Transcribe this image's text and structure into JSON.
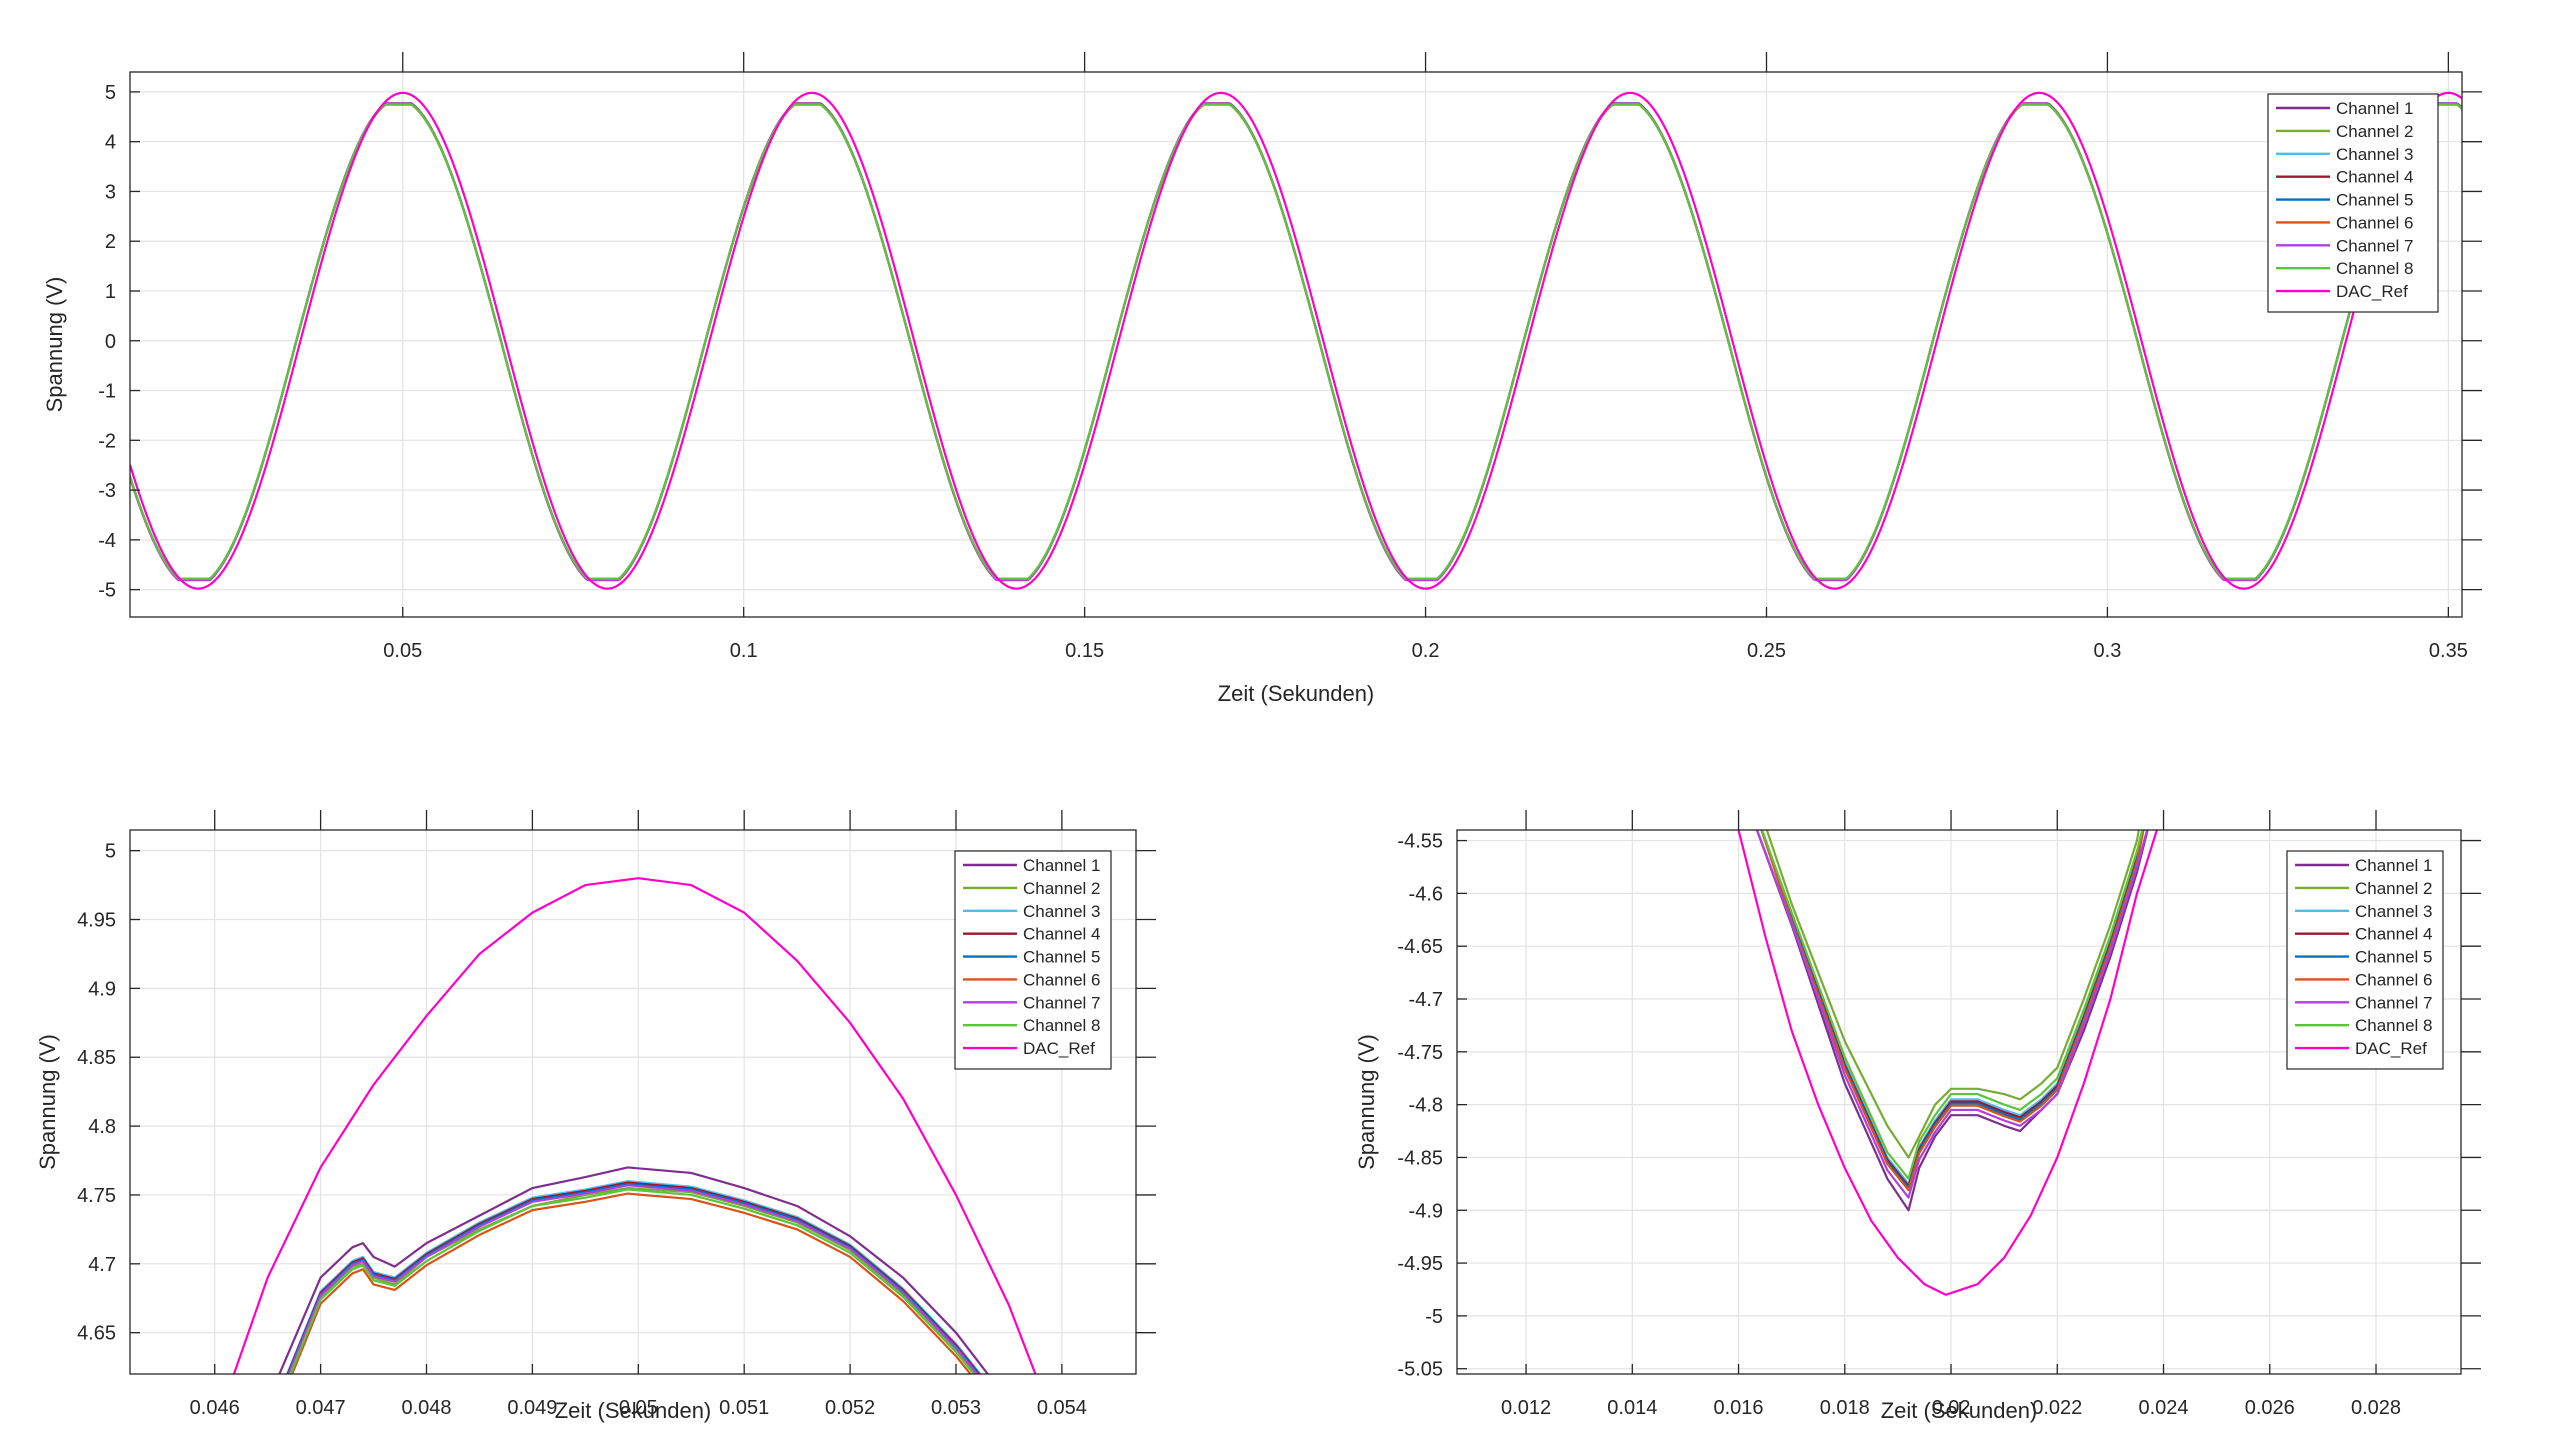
{
  "figure": {
    "background": "#ffffff",
    "axis_color": "#262626",
    "grid_color": "#e3e3e3"
  },
  "series_styles": [
    {
      "name": "Channel 1",
      "color": "#7E2F8E"
    },
    {
      "name": "Channel 2",
      "color": "#77AC30"
    },
    {
      "name": "Channel 3",
      "color": "#4DBEEE"
    },
    {
      "name": "Channel 4",
      "color": "#A2142F"
    },
    {
      "name": "Channel 5",
      "color": "#0072BD"
    },
    {
      "name": "Channel 6",
      "color": "#D95319"
    },
    {
      "name": "Channel 7",
      "color": "#B041E0"
    },
    {
      "name": "Channel 8",
      "color": "#5CC43A"
    },
    {
      "name": "DAC_Ref",
      "color": "#FF00CC"
    }
  ],
  "chart_data": [
    {
      "id": "overview",
      "type": "line",
      "xlabel": "Zeit (Sekunden)",
      "ylabel": "Spannung (V)",
      "xlim": [
        0.01,
        0.352
      ],
      "ylim": [
        -5.55,
        5.4
      ],
      "xticks": [
        0.05,
        0.1,
        0.15,
        0.2,
        0.25,
        0.3,
        0.35
      ],
      "xtick_labels": [
        "0.05",
        "0.1",
        "0.15",
        "0.2",
        "0.25",
        "0.3",
        "0.35"
      ],
      "yticks": [
        5,
        4,
        3,
        2,
        1,
        0,
        -1,
        -2,
        -3,
        -4,
        -5
      ],
      "ytick_labels": [
        "5",
        "4",
        "3",
        "2",
        "1",
        "0",
        "-1",
        "-2",
        "-3",
        "-4",
        "-5"
      ],
      "grid": true,
      "legend_position": "top-right",
      "signal": {
        "frequency_hz": 16.667,
        "reference_amplitude": 4.98,
        "channel_peak": 4.75,
        "channel_trough": -4.8,
        "peak_time_s": 0.05
      },
      "series": [
        {
          "name": "Channel 1",
          "peak_value": 4.77,
          "trough_value": -4.8
        },
        {
          "name": "Channel 2",
          "peak_value": 4.75,
          "trough_value": -4.78
        },
        {
          "name": "Channel 3",
          "peak_value": 4.755,
          "trough_value": -4.795
        },
        {
          "name": "Channel 4",
          "peak_value": 4.755,
          "trough_value": -4.8
        },
        {
          "name": "Channel 5",
          "peak_value": 4.755,
          "trough_value": -4.8
        },
        {
          "name": "Channel 6",
          "peak_value": 4.745,
          "trough_value": -4.805
        },
        {
          "name": "Channel 7",
          "peak_value": 4.755,
          "trough_value": -4.81
        },
        {
          "name": "Channel 8",
          "peak_value": 4.75,
          "trough_value": -4.78
        },
        {
          "name": "DAC_Ref",
          "peak_value": 4.98,
          "trough_value": -4.98
        }
      ]
    },
    {
      "id": "zoom-peak",
      "type": "line",
      "xlabel": "Zeit (Sekunden)",
      "ylabel": "Spannung (V)",
      "xlim": [
        0.0452,
        0.0547
      ],
      "ylim": [
        4.62,
        5.015
      ],
      "xticks": [
        0.046,
        0.047,
        0.048,
        0.049,
        0.05,
        0.051,
        0.052,
        0.053,
        0.054
      ],
      "xtick_labels": [
        "0.046",
        "0.047",
        "0.048",
        "0.049",
        "0.05",
        "0.051",
        "0.052",
        "0.053",
        "0.054"
      ],
      "yticks": [
        5,
        4.95,
        4.9,
        4.85,
        4.8,
        4.75,
        4.7,
        4.65
      ],
      "ytick_labels": [
        "5",
        "4.95",
        "4.9",
        "4.85",
        "4.8",
        "4.75",
        "4.7",
        "4.65"
      ],
      "grid": true,
      "legend_position": "top-right",
      "series": [
        {
          "name": "Channel 1",
          "x": [
            0.0465,
            0.047,
            0.0473,
            0.0474,
            0.0475,
            0.0477,
            0.048,
            0.0485,
            0.049,
            0.0495,
            0.0499,
            0.0505,
            0.051,
            0.0515,
            0.052,
            0.0525,
            0.053,
            0.0535
          ],
          "y": [
            4.6,
            4.69,
            4.712,
            4.715,
            4.705,
            4.698,
            4.715,
            4.735,
            4.755,
            4.763,
            4.77,
            4.766,
            4.755,
            4.742,
            4.72,
            4.69,
            4.65,
            4.6
          ]
        },
        {
          "name": "Channel 2",
          "x": [
            0.0465,
            0.047,
            0.0473,
            0.0474,
            0.0475,
            0.0477,
            0.048,
            0.0485,
            0.049,
            0.0495,
            0.0499,
            0.0505,
            0.051,
            0.0515,
            0.052,
            0.0525,
            0.053,
            0.0535
          ],
          "y": [
            4.58,
            4.675,
            4.698,
            4.7,
            4.69,
            4.685,
            4.705,
            4.725,
            4.742,
            4.75,
            4.755,
            4.752,
            4.742,
            4.73,
            4.71,
            4.678,
            4.638,
            4.59
          ]
        },
        {
          "name": "Channel 3",
          "x": [
            0.0465,
            0.047,
            0.0473,
            0.0474,
            0.0475,
            0.0477,
            0.048,
            0.0485,
            0.049,
            0.0495,
            0.0499,
            0.0505,
            0.051,
            0.0515,
            0.052,
            0.0525,
            0.053,
            0.0535
          ],
          "y": [
            4.585,
            4.68,
            4.702,
            4.705,
            4.694,
            4.69,
            4.708,
            4.73,
            4.748,
            4.754,
            4.76,
            4.756,
            4.746,
            4.734,
            4.714,
            4.682,
            4.642,
            4.594
          ]
        },
        {
          "name": "Channel 4",
          "x": [
            0.0465,
            0.047,
            0.0473,
            0.0474,
            0.0475,
            0.0477,
            0.048,
            0.0485,
            0.049,
            0.0495,
            0.0499,
            0.0505,
            0.051,
            0.0515,
            0.052,
            0.0525,
            0.053,
            0.0535
          ],
          "y": [
            4.584,
            4.679,
            4.701,
            4.704,
            4.693,
            4.689,
            4.707,
            4.729,
            4.747,
            4.753,
            4.759,
            4.755,
            4.745,
            4.733,
            4.713,
            4.681,
            4.641,
            4.593
          ]
        },
        {
          "name": "Channel 5",
          "x": [
            0.0465,
            0.047,
            0.0473,
            0.0474,
            0.0475,
            0.0477,
            0.048,
            0.0485,
            0.049,
            0.0495,
            0.0499,
            0.0505,
            0.051,
            0.0515,
            0.052,
            0.0525,
            0.053,
            0.0535
          ],
          "y": [
            4.583,
            4.678,
            4.7,
            4.703,
            4.692,
            4.688,
            4.706,
            4.728,
            4.746,
            4.752,
            4.758,
            4.754,
            4.744,
            4.732,
            4.712,
            4.68,
            4.64,
            4.592
          ]
        },
        {
          "name": "Channel 6",
          "x": [
            0.0465,
            0.047,
            0.0473,
            0.0474,
            0.0475,
            0.0477,
            0.048,
            0.0485,
            0.049,
            0.0495,
            0.0499,
            0.0505,
            0.051,
            0.0515,
            0.052,
            0.0525,
            0.053,
            0.0535
          ],
          "y": [
            4.576,
            4.671,
            4.693,
            4.696,
            4.685,
            4.681,
            4.699,
            4.721,
            4.739,
            4.745,
            4.751,
            4.747,
            4.737,
            4.725,
            4.705,
            4.673,
            4.633,
            4.585
          ]
        },
        {
          "name": "Channel 7",
          "x": [
            0.0465,
            0.047,
            0.0473,
            0.0474,
            0.0475,
            0.0477,
            0.048,
            0.0485,
            0.049,
            0.0495,
            0.0499,
            0.0505,
            0.051,
            0.0515,
            0.052,
            0.0525,
            0.053,
            0.0535
          ],
          "y": [
            4.582,
            4.677,
            4.699,
            4.702,
            4.691,
            4.687,
            4.705,
            4.727,
            4.745,
            4.751,
            4.757,
            4.753,
            4.743,
            4.731,
            4.711,
            4.679,
            4.639,
            4.591
          ]
        },
        {
          "name": "Channel 8",
          "x": [
            0.0465,
            0.047,
            0.0473,
            0.0474,
            0.0475,
            0.0477,
            0.048,
            0.0485,
            0.049,
            0.0495,
            0.0499,
            0.0505,
            0.051,
            0.0515,
            0.052,
            0.0525,
            0.053,
            0.0535
          ],
          "y": [
            4.579,
            4.674,
            4.696,
            4.699,
            4.688,
            4.684,
            4.702,
            4.724,
            4.742,
            4.748,
            4.754,
            4.75,
            4.74,
            4.728,
            4.708,
            4.676,
            4.636,
            4.588
          ]
        },
        {
          "name": "DAC_Ref",
          "x": [
            0.046,
            0.0465,
            0.047,
            0.0475,
            0.048,
            0.0485,
            0.049,
            0.0495,
            0.05,
            0.0505,
            0.051,
            0.0515,
            0.052,
            0.0525,
            0.053,
            0.0535,
            0.054
          ],
          "y": [
            4.58,
            4.69,
            4.77,
            4.83,
            4.88,
            4.925,
            4.955,
            4.975,
            4.98,
            4.975,
            4.955,
            4.92,
            4.875,
            4.82,
            4.75,
            4.67,
            4.57
          ]
        }
      ]
    },
    {
      "id": "zoom-trough",
      "type": "line",
      "xlabel": "Zeit (Sekunden)",
      "ylabel": "Spannung (V)",
      "xlim": [
        0.0107,
        0.0296
      ],
      "ylim": [
        -5.055,
        -4.54
      ],
      "xticks": [
        0.012,
        0.014,
        0.016,
        0.018,
        0.02,
        0.022,
        0.024,
        0.026,
        0.028
      ],
      "xtick_labels": [
        "0.012",
        "0.014",
        "0.016",
        "0.018",
        "0.02",
        "0.022",
        "0.024",
        "0.026",
        "0.028"
      ],
      "yticks": [
        -4.55,
        -4.6,
        -4.65,
        -4.7,
        -4.75,
        -4.8,
        -4.85,
        -4.9,
        -4.95,
        -5,
        -5.05
      ],
      "ytick_labels": [
        "-4.55",
        "-4.6",
        "-4.65",
        "-4.7",
        "-4.75",
        "-4.8",
        "-4.85",
        "-4.9",
        "-4.95",
        "-5",
        "-5.05"
      ],
      "grid": true,
      "legend_position": "top-right",
      "series": [
        {
          "name": "Channel 1",
          "x": [
            0.0162,
            0.017,
            0.018,
            0.0188,
            0.0192,
            0.0194,
            0.0197,
            0.02,
            0.0205,
            0.021,
            0.0213,
            0.0217,
            0.022,
            0.0225,
            0.023,
            0.0235,
            0.0238
          ],
          "y": [
            -4.52,
            -4.63,
            -4.78,
            -4.87,
            -4.9,
            -4.86,
            -4.83,
            -4.81,
            -4.81,
            -4.82,
            -4.825,
            -4.805,
            -4.79,
            -4.73,
            -4.66,
            -4.58,
            -4.52
          ]
        },
        {
          "name": "Channel 2",
          "x": [
            0.0164,
            0.017,
            0.018,
            0.0188,
            0.0192,
            0.0194,
            0.0197,
            0.02,
            0.0205,
            0.021,
            0.0213,
            0.0217,
            0.022,
            0.0225,
            0.023,
            0.0235,
            0.0236
          ],
          "y": [
            -4.52,
            -4.61,
            -4.74,
            -4.82,
            -4.85,
            -4.83,
            -4.8,
            -4.785,
            -4.785,
            -4.79,
            -4.795,
            -4.78,
            -4.765,
            -4.7,
            -4.63,
            -4.55,
            -4.52
          ]
        },
        {
          "name": "Channel 3",
          "x": [
            0.0163,
            0.017,
            0.018,
            0.0188,
            0.0192,
            0.0194,
            0.0197,
            0.02,
            0.0205,
            0.021,
            0.0213,
            0.0217,
            0.022,
            0.0225,
            0.023,
            0.0235,
            0.0237
          ],
          "y": [
            -4.52,
            -4.62,
            -4.76,
            -4.85,
            -4.875,
            -4.84,
            -4.815,
            -4.795,
            -4.795,
            -4.805,
            -4.81,
            -4.795,
            -4.78,
            -4.715,
            -4.645,
            -4.565,
            -4.52
          ]
        },
        {
          "name": "Channel 4",
          "x": [
            0.0163,
            0.017,
            0.018,
            0.0188,
            0.0192,
            0.0194,
            0.0197,
            0.02,
            0.0205,
            0.021,
            0.0213,
            0.0217,
            0.022,
            0.0225,
            0.023,
            0.0235,
            0.0237
          ],
          "y": [
            -4.52,
            -4.622,
            -4.762,
            -4.852,
            -4.877,
            -4.842,
            -4.817,
            -4.797,
            -4.797,
            -4.807,
            -4.812,
            -4.797,
            -4.782,
            -4.717,
            -4.647,
            -4.567,
            -4.52
          ]
        },
        {
          "name": "Channel 5",
          "x": [
            0.0163,
            0.017,
            0.018,
            0.0188,
            0.0192,
            0.0194,
            0.0197,
            0.02,
            0.0205,
            0.021,
            0.0213,
            0.0217,
            0.022,
            0.0225,
            0.023,
            0.0235,
            0.0237
          ],
          "y": [
            -4.52,
            -4.624,
            -4.764,
            -4.854,
            -4.879,
            -4.844,
            -4.819,
            -4.799,
            -4.799,
            -4.809,
            -4.814,
            -4.799,
            -4.784,
            -4.719,
            -4.649,
            -4.569,
            -4.52
          ]
        },
        {
          "name": "Channel 6",
          "x": [
            0.0163,
            0.017,
            0.018,
            0.0188,
            0.0192,
            0.0194,
            0.0197,
            0.02,
            0.0205,
            0.021,
            0.0213,
            0.0217,
            0.022,
            0.0225,
            0.023,
            0.0235,
            0.0237
          ],
          "y": [
            -4.52,
            -4.626,
            -4.766,
            -4.856,
            -4.881,
            -4.846,
            -4.821,
            -4.801,
            -4.801,
            -4.811,
            -4.816,
            -4.801,
            -4.786,
            -4.721,
            -4.651,
            -4.571,
            -4.52
          ]
        },
        {
          "name": "Channel 7",
          "x": [
            0.0162,
            0.017,
            0.018,
            0.0188,
            0.0192,
            0.0194,
            0.0197,
            0.02,
            0.0205,
            0.021,
            0.0213,
            0.0217,
            0.022,
            0.0225,
            0.023,
            0.0235,
            0.0238
          ],
          "y": [
            -4.52,
            -4.628,
            -4.772,
            -4.862,
            -4.888,
            -4.852,
            -4.826,
            -4.805,
            -4.805,
            -4.815,
            -4.82,
            -4.805,
            -4.79,
            -4.725,
            -4.655,
            -4.575,
            -4.52
          ]
        },
        {
          "name": "Channel 8",
          "x": [
            0.0163,
            0.017,
            0.018,
            0.0188,
            0.0192,
            0.0194,
            0.0197,
            0.02,
            0.0205,
            0.021,
            0.0213,
            0.0217,
            0.022,
            0.0225,
            0.023,
            0.0235,
            0.0237
          ],
          "y": [
            -4.52,
            -4.618,
            -4.755,
            -4.845,
            -4.87,
            -4.835,
            -4.81,
            -4.79,
            -4.79,
            -4.8,
            -4.805,
            -4.79,
            -4.775,
            -4.71,
            -4.64,
            -4.56,
            -4.52
          ]
        },
        {
          "name": "DAC_Ref",
          "x": [
            0.0159,
            0.0165,
            0.017,
            0.0175,
            0.018,
            0.0185,
            0.019,
            0.0195,
            0.0199,
            0.0205,
            0.021,
            0.0215,
            0.022,
            0.0225,
            0.023,
            0.0235,
            0.024
          ],
          "y": [
            -4.52,
            -4.64,
            -4.73,
            -4.8,
            -4.86,
            -4.91,
            -4.945,
            -4.97,
            -4.98,
            -4.97,
            -4.945,
            -4.905,
            -4.85,
            -4.78,
            -4.7,
            -4.6,
            -4.52
          ]
        }
      ]
    }
  ]
}
